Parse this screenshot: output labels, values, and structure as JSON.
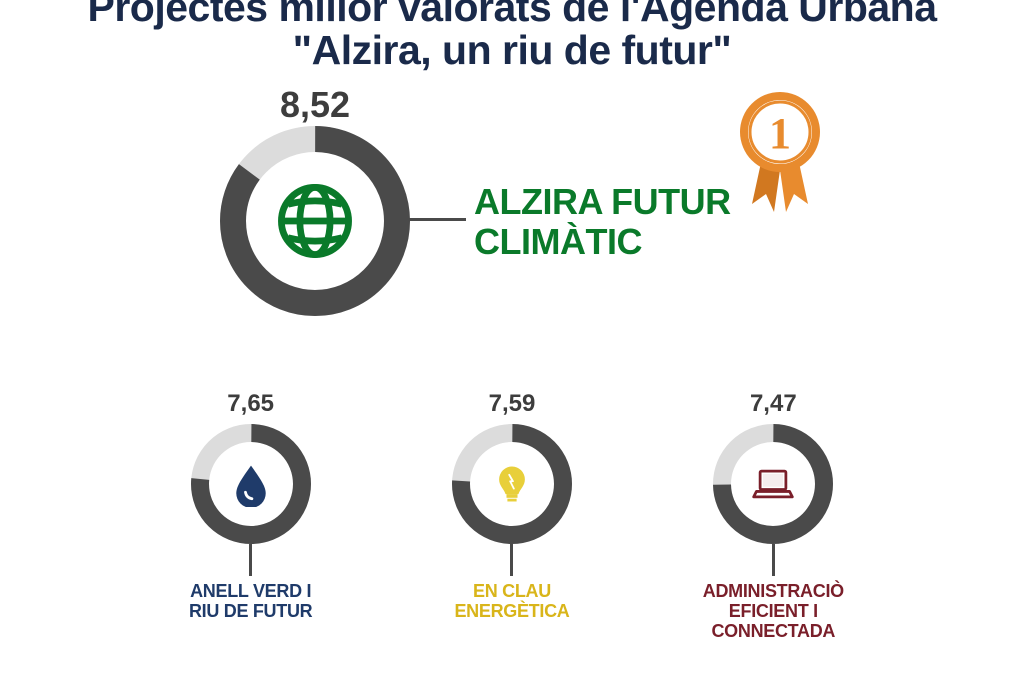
{
  "title_line1": "Projectes millor valorats de l'Agenda Urbana",
  "title_line2": "\"Alzira, un riu de futur\"",
  "title_color": "#1a2a4a",
  "title_fontsize": 41,
  "background_color": "#ffffff",
  "max_score": 10,
  "main": {
    "value": "8,52",
    "value_num": 8.52,
    "value_fontsize": 36,
    "value_color": "#3d3d3d",
    "label_line1": "ALZIRA FUTUR",
    "label_line2": "CLIMÀTIC",
    "label_color": "#0a7a2a",
    "label_fontsize": 36,
    "donut_size": 190,
    "ring_color": "#4a4a4a",
    "track_color": "#dcdcdc",
    "ring_width": 26,
    "icon": "globe",
    "icon_color": "#0a7a2a",
    "medal_number": "1",
    "medal_circle_color": "#e88b2e",
    "medal_border_color": "#ffffff",
    "medal_ribbon_color": "#e88b2e",
    "medal_ribbon_color2": "#d17820",
    "medal_number_color": "#e88b2e"
  },
  "row2_item_value_fontsize": 24,
  "row2_item_value_color": "#3d3d3d",
  "row2_item_donut_size": 120,
  "row2_item_ring_width": 18,
  "row2_item_ring_color": "#4a4a4a",
  "row2_item_track_color": "#dcdcdc",
  "row2_item_label_fontsize": 18,
  "items": [
    {
      "value": "7,65",
      "value_num": 7.65,
      "label_line1": "ANELL VERD I",
      "label_line2": "RIU DE FUTUR",
      "label_color": "#1f3b6a",
      "icon": "drop",
      "icon_color": "#1f3b6a"
    },
    {
      "value": "7,59",
      "value_num": 7.59,
      "label_line1": "EN CLAU",
      "label_line2": "ENERGÈTICA",
      "label_color": "#d9b51a",
      "icon": "bulb",
      "icon_color": "#e8cf3a"
    },
    {
      "value": "7,47",
      "value_num": 7.47,
      "label_line1": "ADMINISTRACIÒ",
      "label_line2": "EFICIENT I",
      "label_line3": "CONNECTADA",
      "label_color": "#7a1f2a",
      "icon": "laptop",
      "icon_color": "#7a1f2a"
    }
  ]
}
